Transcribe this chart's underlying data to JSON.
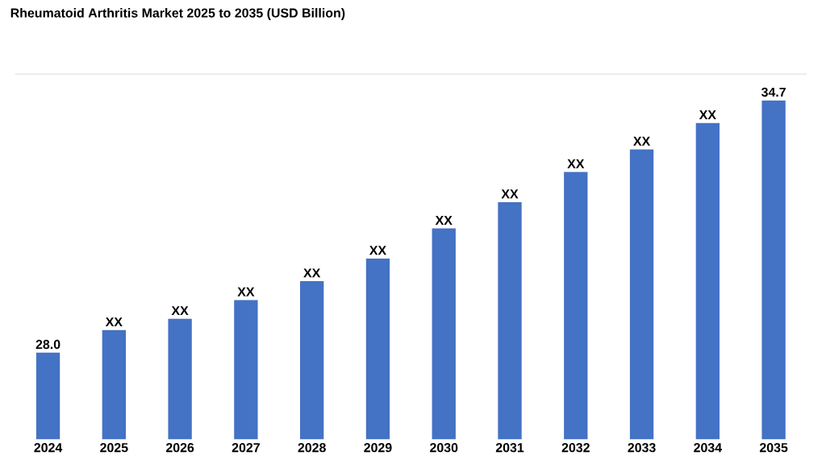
{
  "chart_data": {
    "type": "bar",
    "title": "Rheumatoid Arthritis Market 2025 to 2035 (USD Billion)",
    "categories": [
      "2024",
      "2025",
      "2026",
      "2027",
      "2028",
      "2029",
      "2030",
      "2031",
      "2032",
      "2033",
      "2034",
      "2035"
    ],
    "values": [
      28.0,
      28.6,
      28.9,
      29.4,
      29.9,
      30.5,
      31.3,
      32.0,
      32.8,
      33.4,
      34.1,
      34.7
    ],
    "value_labels": [
      "28.0",
      "XX",
      "XX",
      "XX",
      "XX",
      "XX",
      "XX",
      "XX",
      "XX",
      "XX",
      "XX",
      "34.7"
    ],
    "ylim": [
      25.7,
      35.4
    ],
    "color": "#4472c4"
  }
}
